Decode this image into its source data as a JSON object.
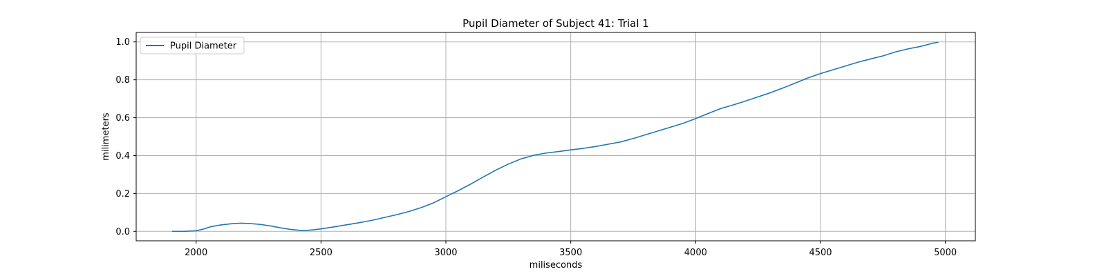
{
  "chart_data": {
    "type": "line",
    "title": "Pupil Diameter of Subject 41: Trial 1",
    "xlabel": "miliseconds",
    "ylabel": "milimeters",
    "xlim": [
      1760,
      5120
    ],
    "ylim": [
      -0.05,
      1.05
    ],
    "xticks": [
      2000,
      2500,
      3000,
      3500,
      4000,
      4500,
      5000
    ],
    "yticks": [
      0.0,
      0.2,
      0.4,
      0.6,
      0.8,
      1.0
    ],
    "xtick_labels": [
      "2000",
      "2500",
      "3000",
      "3500",
      "4000",
      "4500",
      "5000"
    ],
    "ytick_labels": [
      "0.0",
      "0.2",
      "0.4",
      "0.6",
      "0.8",
      "1.0"
    ],
    "grid": true,
    "legend": "top-left",
    "colors": {
      "line": "#1f77b4",
      "grid": "#b0b0b0"
    },
    "series": [
      {
        "name": "Pupil Diameter",
        "x": [
          1905,
          1950,
          2000,
          2030,
          2060,
          2100,
          2140,
          2180,
          2220,
          2260,
          2300,
          2340,
          2380,
          2420,
          2440,
          2470,
          2500,
          2550,
          2600,
          2650,
          2700,
          2750,
          2800,
          2850,
          2900,
          2950,
          3000,
          3050,
          3100,
          3150,
          3200,
          3250,
          3300,
          3350,
          3400,
          3450,
          3500,
          3550,
          3600,
          3650,
          3700,
          3750,
          3800,
          3850,
          3900,
          3950,
          4000,
          4050,
          4100,
          4150,
          4200,
          4250,
          4300,
          4350,
          4400,
          4450,
          4500,
          4550,
          4600,
          4650,
          4700,
          4750,
          4800,
          4850,
          4900,
          4950,
          4970
        ],
        "y": [
          0.0,
          0.0,
          0.003,
          0.012,
          0.025,
          0.034,
          0.04,
          0.043,
          0.041,
          0.036,
          0.028,
          0.018,
          0.01,
          0.005,
          0.005,
          0.008,
          0.013,
          0.023,
          0.034,
          0.045,
          0.057,
          0.072,
          0.087,
          0.104,
          0.125,
          0.15,
          0.183,
          0.215,
          0.25,
          0.287,
          0.323,
          0.355,
          0.382,
          0.401,
          0.413,
          0.421,
          0.43,
          0.438,
          0.448,
          0.46,
          0.472,
          0.49,
          0.51,
          0.53,
          0.55,
          0.57,
          0.595,
          0.622,
          0.648,
          0.667,
          0.688,
          0.71,
          0.732,
          0.757,
          0.783,
          0.81,
          0.833,
          0.853,
          0.873,
          0.893,
          0.91,
          0.926,
          0.947,
          0.963,
          0.976,
          0.993,
          0.998
        ]
      }
    ]
  }
}
